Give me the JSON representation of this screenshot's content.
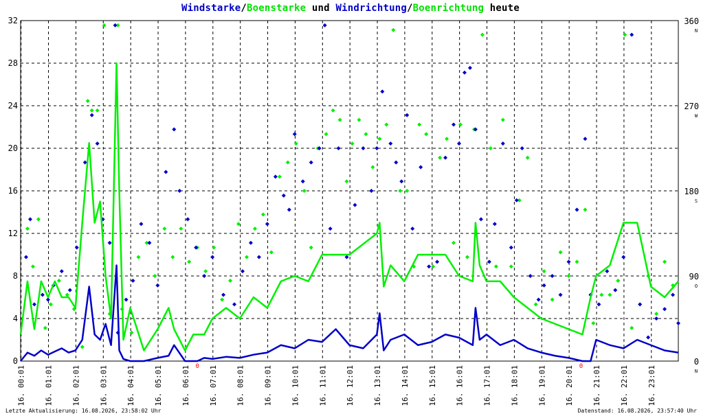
{
  "title_parts": {
    "p1": "Windstarke",
    "p2": "/",
    "p3": "Boenstarke",
    "p4": " und ",
    "p5": "Windrichtung",
    "p6": "/",
    "p7": "Boenrichtung",
    "p8": " heute"
  },
  "footer": {
    "left": "Letzte Aktualisierung: 16.08.2026, 23:58:02 Uhr",
    "right": "Datenstand: 16.08.2026, 23:57:40 Uhr"
  },
  "colors": {
    "wind": "#0000c8",
    "gust": "#00f000",
    "grid": "#000000",
    "marker": "#ff0000"
  },
  "chart_data": {
    "type": "line",
    "x_ticks": [
      "16. 00:01",
      "16. 01:01",
      "16. 02:01",
      "16. 03:01",
      "16. 04:01",
      "16. 05:01",
      "16. 06:01",
      "16. 07:01",
      "16. 08:01",
      "16. 09:01",
      "16. 10:01",
      "16. 11:01",
      "16. 12:01",
      "16. 13:01",
      "16. 14:01",
      "16. 15:01",
      "16. 16:01",
      "16. 17:01",
      "16. 18:01",
      "16. 19:01",
      "16. 20:01",
      "16. 21:01",
      "16. 22:01",
      "16. 23:01"
    ],
    "y_left": {
      "min": 0,
      "max": 32,
      "ticks": [
        "0",
        "4",
        "8",
        "12",
        "16",
        "20",
        "24",
        "28",
        "32"
      ]
    },
    "y_right": {
      "ticks": [
        {
          "deg": 0,
          "label": "0",
          "letter": "N"
        },
        {
          "deg": 90,
          "label": "90",
          "letter": "O"
        },
        {
          "deg": 180,
          "label": "180",
          "letter": "S"
        },
        {
          "deg": 270,
          "label": "270",
          "letter": "W"
        },
        {
          "deg": 360,
          "label": "360",
          "letter": "N"
        }
      ]
    },
    "x_range_hours": [
      0,
      24
    ],
    "grid": true,
    "zero_markers": [
      {
        "x": 6.45,
        "label": "0"
      },
      {
        "x": 20.45,
        "label": "0"
      }
    ],
    "series": [
      {
        "name": "Windstarke",
        "kind": "line",
        "color": "#0000c8",
        "x_hours": [
          0,
          0.25,
          0.5,
          0.75,
          1,
          1.25,
          1.5,
          1.75,
          2,
          2.25,
          2.5,
          2.7,
          2.9,
          3.1,
          3.3,
          3.5,
          3.6,
          3.75,
          4,
          4.5,
          5,
          5.4,
          5.6,
          6,
          6.3,
          6.45,
          6.7,
          7,
          7.5,
          8,
          8.5,
          9,
          9.5,
          10,
          10.5,
          11,
          11.5,
          12,
          12.5,
          13,
          13.1,
          13.25,
          13.5,
          14,
          14.5,
          15,
          15.5,
          16,
          16.5,
          16.6,
          16.75,
          17,
          17.5,
          18,
          18.5,
          19,
          19.5,
          20,
          20.5,
          20.8,
          21,
          21.5,
          22,
          22.5,
          23,
          23.5,
          24
        ],
        "values": [
          0,
          0.8,
          0.5,
          1,
          0.6,
          0.9,
          1.2,
          0.8,
          1,
          2,
          7,
          2.5,
          2,
          3.5,
          1.5,
          9,
          1,
          0.2,
          0,
          0,
          0.3,
          0.5,
          1.5,
          0,
          0,
          0,
          0.3,
          0.2,
          0.4,
          0.3,
          0.6,
          0.8,
          1.5,
          1.2,
          2,
          1.8,
          3,
          1.5,
          1.2,
          2.5,
          4.5,
          1,
          2,
          2.5,
          1.5,
          1.8,
          2.5,
          2.2,
          1.5,
          5,
          2,
          2.5,
          1.5,
          2,
          1.2,
          0.8,
          0.5,
          0.3,
          0,
          0,
          2,
          1.5,
          1.2,
          2,
          1.5,
          1,
          0.8
        ]
      },
      {
        "name": "Boenstarke",
        "kind": "line",
        "color": "#00f000",
        "x_hours": [
          0,
          0.25,
          0.5,
          0.75,
          1,
          1.25,
          1.5,
          1.75,
          2,
          2.25,
          2.5,
          2.7,
          2.9,
          3.1,
          3.3,
          3.5,
          3.6,
          3.75,
          4,
          4.5,
          5,
          5.4,
          5.6,
          6,
          6.3,
          6.45,
          6.7,
          7,
          7.5,
          8,
          8.5,
          9,
          9.5,
          10,
          10.5,
          11,
          11.5,
          12,
          12.5,
          13,
          13.1,
          13.25,
          13.5,
          14,
          14.5,
          15,
          15.5,
          16,
          16.5,
          16.6,
          16.75,
          17,
          17.5,
          18,
          18.5,
          19,
          19.5,
          20,
          20.5,
          20.8,
          21,
          21.5,
          22,
          22.5,
          23,
          23.5,
          24
        ],
        "values": [
          2.5,
          7.5,
          3,
          7.5,
          6,
          7.5,
          6,
          6,
          5,
          13,
          20.5,
          13,
          15,
          8,
          4,
          28,
          16,
          2,
          5,
          1,
          3,
          5,
          3,
          1,
          2.5,
          2.5,
          2.5,
          4,
          5,
          4,
          6,
          5,
          7.5,
          8,
          7.5,
          10,
          10,
          10,
          11,
          12,
          13,
          7,
          9,
          7.5,
          10,
          10,
          10,
          8,
          7.5,
          13,
          9,
          7.5,
          7.5,
          6,
          5,
          4,
          3.5,
          3,
          2.5,
          6,
          8,
          9,
          13,
          13,
          7,
          6,
          7.5
        ]
      }
    ],
    "direction_points": {
      "wind_color": "#0000c8",
      "gust_color": "#00f000",
      "wind": [
        [
          0.2,
          110
        ],
        [
          0.35,
          150
        ],
        [
          0.5,
          60
        ],
        [
          0.8,
          70
        ],
        [
          1.0,
          65
        ],
        [
          1.2,
          80
        ],
        [
          1.5,
          95
        ],
        [
          1.8,
          75
        ],
        [
          2.05,
          120
        ],
        [
          2.35,
          210
        ],
        [
          2.6,
          260
        ],
        [
          2.8,
          230
        ],
        [
          3.0,
          150
        ],
        [
          3.25,
          125
        ],
        [
          3.45,
          355
        ],
        [
          3.55,
          30
        ],
        [
          3.85,
          65
        ],
        [
          4.1,
          85
        ],
        [
          4.4,
          145
        ],
        [
          4.7,
          125
        ],
        [
          5.0,
          80
        ],
        [
          5.3,
          200
        ],
        [
          5.6,
          245
        ],
        [
          5.8,
          180
        ],
        [
          6.1,
          150
        ],
        [
          6.4,
          120
        ],
        [
          6.7,
          90
        ],
        [
          7.0,
          110
        ],
        [
          7.4,
          70
        ],
        [
          7.8,
          60
        ],
        [
          8.1,
          95
        ],
        [
          8.4,
          125
        ],
        [
          8.7,
          110
        ],
        [
          9.0,
          145
        ],
        [
          9.3,
          195
        ],
        [
          9.6,
          175
        ],
        [
          9.8,
          160
        ],
        [
          10.0,
          240
        ],
        [
          10.3,
          190
        ],
        [
          10.6,
          210
        ],
        [
          10.9,
          225
        ],
        [
          11.1,
          355
        ],
        [
          11.3,
          140
        ],
        [
          11.6,
          225
        ],
        [
          11.9,
          110
        ],
        [
          12.2,
          165
        ],
        [
          12.5,
          225
        ],
        [
          12.8,
          180
        ],
        [
          13.0,
          225
        ],
        [
          13.2,
          285
        ],
        [
          13.5,
          230
        ],
        [
          13.7,
          210
        ],
        [
          13.9,
          190
        ],
        [
          14.1,
          260
        ],
        [
          14.3,
          140
        ],
        [
          14.6,
          205
        ],
        [
          14.9,
          100
        ],
        [
          15.2,
          105
        ],
        [
          15.5,
          215
        ],
        [
          15.8,
          250
        ],
        [
          16.0,
          230
        ],
        [
          16.2,
          305
        ],
        [
          16.4,
          310
        ],
        [
          16.6,
          245
        ],
        [
          16.8,
          150
        ],
        [
          17.1,
          105
        ],
        [
          17.3,
          145
        ],
        [
          17.6,
          230
        ],
        [
          17.9,
          120
        ],
        [
          18.1,
          170
        ],
        [
          18.3,
          225
        ],
        [
          18.6,
          90
        ],
        [
          18.9,
          65
        ],
        [
          19.1,
          80
        ],
        [
          19.4,
          90
        ],
        [
          19.7,
          70
        ],
        [
          20.0,
          105
        ],
        [
          20.3,
          160
        ],
        [
          20.6,
          235
        ],
        [
          20.8,
          70
        ],
        [
          21.1,
          60
        ],
        [
          21.4,
          95
        ],
        [
          21.7,
          75
        ],
        [
          22.0,
          110
        ],
        [
          22.3,
          345
        ],
        [
          22.6,
          60
        ],
        [
          22.9,
          25
        ],
        [
          23.2,
          45
        ],
        [
          23.5,
          55
        ],
        [
          23.8,
          70
        ],
        [
          24.0,
          40
        ]
      ],
      "gust": [
        [
          0.25,
          140
        ],
        [
          0.45,
          100
        ],
        [
          0.65,
          150
        ],
        [
          0.9,
          35
        ],
        [
          1.1,
          60
        ],
        [
          1.4,
          85
        ],
        [
          1.7,
          70
        ],
        [
          1.95,
          55
        ],
        [
          2.25,
          15
        ],
        [
          2.45,
          275
        ],
        [
          2.6,
          265
        ],
        [
          2.8,
          265
        ],
        [
          3.05,
          355
        ],
        [
          3.25,
          50
        ],
        [
          3.55,
          355
        ],
        [
          3.7,
          55
        ],
        [
          4.05,
          30
        ],
        [
          4.3,
          110
        ],
        [
          4.6,
          125
        ],
        [
          4.9,
          90
        ],
        [
          5.25,
          140
        ],
        [
          5.55,
          110
        ],
        [
          5.85,
          140
        ],
        [
          6.15,
          105
        ],
        [
          6.45,
          120
        ],
        [
          6.75,
          95
        ],
        [
          7.05,
          120
        ],
        [
          7.35,
          65
        ],
        [
          7.65,
          85
        ],
        [
          7.95,
          145
        ],
        [
          8.25,
          110
        ],
        [
          8.55,
          140
        ],
        [
          8.85,
          155
        ],
        [
          9.15,
          115
        ],
        [
          9.45,
          195
        ],
        [
          9.75,
          210
        ],
        [
          10.05,
          230
        ],
        [
          10.35,
          180
        ],
        [
          10.6,
          120
        ],
        [
          10.85,
          225
        ],
        [
          11.15,
          240
        ],
        [
          11.4,
          265
        ],
        [
          11.65,
          255
        ],
        [
          11.9,
          190
        ],
        [
          12.1,
          230
        ],
        [
          12.35,
          255
        ],
        [
          12.6,
          240
        ],
        [
          12.85,
          205
        ],
        [
          13.1,
          235
        ],
        [
          13.35,
          250
        ],
        [
          13.6,
          350
        ],
        [
          13.85,
          180
        ],
        [
          14.1,
          180
        ],
        [
          14.35,
          100
        ],
        [
          14.55,
          250
        ],
        [
          14.8,
          240
        ],
        [
          15.05,
          100
        ],
        [
          15.3,
          215
        ],
        [
          15.55,
          235
        ],
        [
          15.8,
          125
        ],
        [
          16.05,
          250
        ],
        [
          16.3,
          110
        ],
        [
          16.55,
          245
        ],
        [
          16.85,
          345
        ],
        [
          17.15,
          225
        ],
        [
          17.35,
          100
        ],
        [
          17.6,
          255
        ],
        [
          17.9,
          100
        ],
        [
          18.2,
          170
        ],
        [
          18.5,
          215
        ],
        [
          18.8,
          60
        ],
        [
          19.1,
          95
        ],
        [
          19.4,
          65
        ],
        [
          19.7,
          115
        ],
        [
          20.0,
          90
        ],
        [
          20.3,
          105
        ],
        [
          20.6,
          160
        ],
        [
          20.9,
          40
        ],
        [
          21.2,
          70
        ],
        [
          21.5,
          70
        ],
        [
          21.8,
          85
        ],
        [
          22.05,
          345
        ],
        [
          22.3,
          35
        ],
        [
          22.6,
          60
        ],
        [
          22.9,
          90
        ],
        [
          23.2,
          50
        ],
        [
          23.5,
          105
        ],
        [
          23.8,
          80
        ]
      ]
    }
  }
}
